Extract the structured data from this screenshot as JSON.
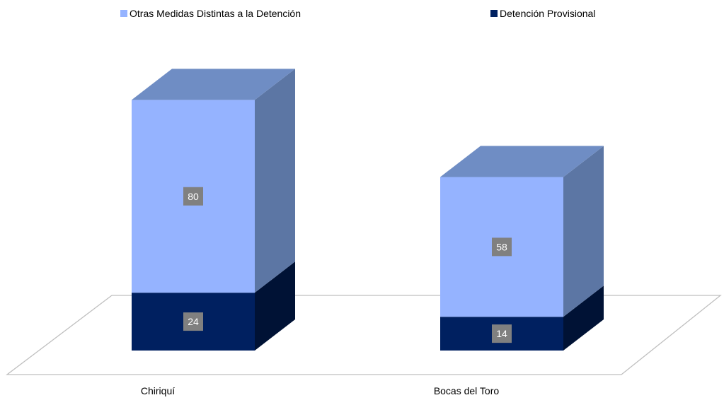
{
  "chart_data": {
    "type": "bar",
    "stacked": true,
    "three_d": true,
    "categories": [
      "Chiriquí",
      "Bocas del Toro"
    ],
    "series": [
      {
        "name": "Detención Provisional",
        "values": [
          24,
          14
        ],
        "color": "#002060"
      },
      {
        "name": "Otras Medidas Distintas a la Detención",
        "values": [
          80,
          58
        ],
        "color": "#95B3FF"
      }
    ],
    "legend_position": "top",
    "data_labels": true,
    "grid": false
  }
}
